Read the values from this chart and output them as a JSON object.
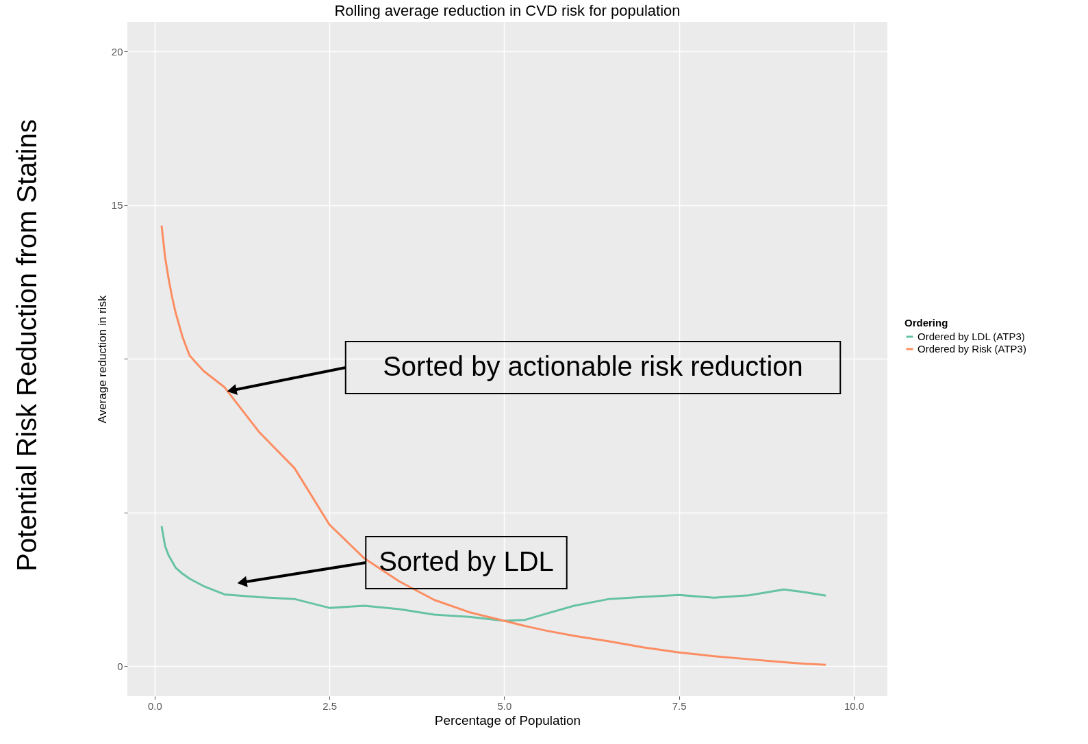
{
  "chart_data": {
    "type": "line",
    "title": "Rolling average reduction in CVD risk for population",
    "xlabel": "Percentage of Population",
    "ylabel": "Average reduction in risk",
    "legend_title": "Ordering",
    "x": [
      0.1,
      0.15,
      0.2,
      0.25,
      0.3,
      0.4,
      0.5,
      0.7,
      1.0,
      1.5,
      2.0,
      2.5,
      3.0,
      3.5,
      4.0,
      4.5,
      5.0,
      5.3,
      5.6,
      6.0,
      6.5,
      7.0,
      7.5,
      8.0,
      8.5,
      9.0,
      9.3,
      9.6
    ],
    "series": [
      {
        "name": "Ordered by LDL (ATP3)",
        "color": "#66c2a5",
        "values": [
          4.55,
          3.9,
          3.6,
          3.4,
          3.2,
          3.0,
          2.84,
          2.6,
          2.33,
          2.24,
          2.18,
          1.89,
          1.96,
          1.85,
          1.67,
          1.6,
          1.47,
          1.5,
          1.7,
          1.96,
          2.18,
          2.25,
          2.31,
          2.22,
          2.3,
          2.49,
          2.4,
          2.29
        ]
      },
      {
        "name": "Ordered by Risk (ATP3)",
        "color": "#fc8d62",
        "values": [
          14.33,
          13.3,
          12.6,
          12.0,
          11.5,
          10.7,
          10.1,
          9.6,
          9.07,
          7.6,
          6.44,
          4.6,
          3.5,
          2.75,
          2.15,
          1.75,
          1.47,
          1.3,
          1.15,
          0.98,
          0.8,
          0.6,
          0.44,
          0.32,
          0.22,
          0.12,
          0.07,
          0.04
        ]
      }
    ],
    "xlim": [
      -0.39,
      10.48
    ],
    "ylim": [
      -0.98,
      20.96
    ],
    "xticks": [
      {
        "value": 0,
        "label": "0.0"
      },
      {
        "value": 2.5,
        "label": "2.5"
      },
      {
        "value": 5,
        "label": "5.0"
      },
      {
        "value": 7.5,
        "label": "7.5"
      },
      {
        "value": 10,
        "label": "10.0"
      }
    ],
    "yticks": [
      0,
      {
        "value": 5,
        "label": null
      },
      {
        "value": 10,
        "label": null
      },
      15,
      20
    ],
    "grid": true,
    "legend": "right",
    "marker": "none",
    "line_style": "solid",
    "annotations": [
      "Sorted by actionable risk reduction",
      "Sorted by LDL",
      "Potential Risk Reduction from Statins"
    ]
  }
}
